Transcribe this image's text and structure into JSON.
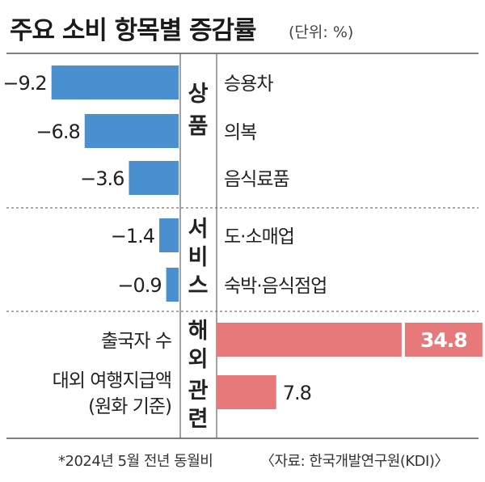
{
  "title": "주요 소비 항목별 증감률",
  "unit": "(단위: %)",
  "footnote_left": "*2024년 5월 전년 동월비",
  "footnote_right": "〈자료: 한국개발연구원(KDI)〉",
  "chart_data": {
    "type": "bar",
    "orientation": "horizontal",
    "groups": [
      {
        "name": "상품",
        "items": [
          {
            "label": "승용차",
            "value": -9.2,
            "value_label": "−9.2"
          },
          {
            "label": "의복",
            "value": -6.8,
            "value_label": "−6.8"
          },
          {
            "label": "음식료품",
            "value": -3.6,
            "value_label": "−3.6"
          }
        ]
      },
      {
        "name": "서비스",
        "items": [
          {
            "label": "도·소매업",
            "value": -1.4,
            "value_label": "−1.4"
          },
          {
            "label": "숙박·음식점업",
            "value": -0.9,
            "value_label": "−0.9"
          }
        ]
      },
      {
        "name": "해외관련",
        "items": [
          {
            "label": "출국자 수",
            "value": 34.8,
            "value_label": "34.8"
          },
          {
            "label": "대외 여행지급액 (원화 기준)",
            "label_lines": [
              "대외 여행지급액",
              "(원화 기준)"
            ],
            "value": 7.8,
            "value_label": "7.8"
          }
        ]
      }
    ],
    "colors": {
      "negative": "#4a8fd0",
      "positive": "#e8797a"
    }
  }
}
